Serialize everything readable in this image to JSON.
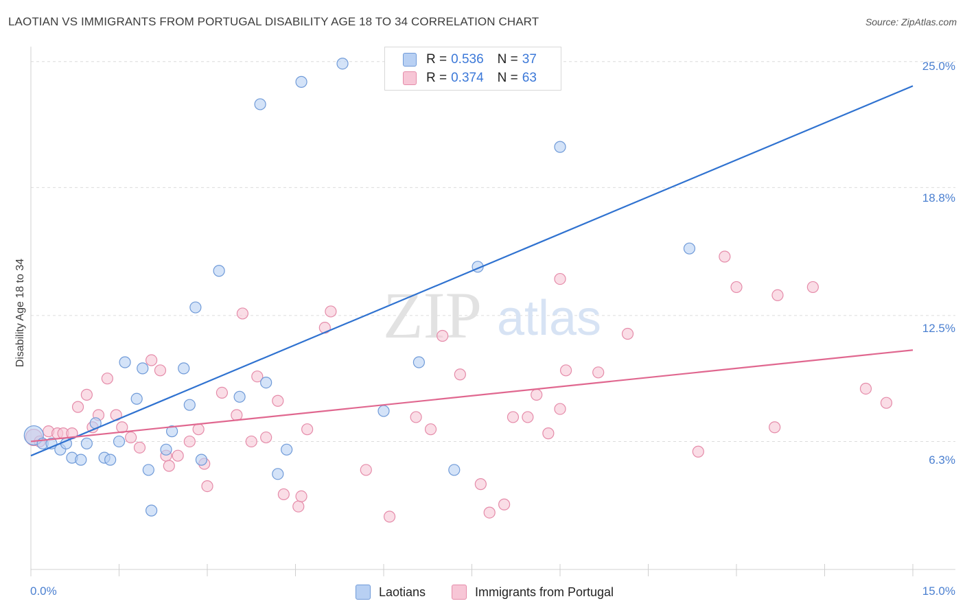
{
  "header": {
    "title": "LAOTIAN VS IMMIGRANTS FROM PORTUGAL DISABILITY AGE 18 TO 34 CORRELATION CHART",
    "source": "Source: ZipAtlas.com"
  },
  "colors": {
    "blue_fill": "#b8d0f3",
    "blue_stroke": "#6f9ad8",
    "blue_line": "#2f72d0",
    "pink_fill": "#f7c6d6",
    "pink_stroke": "#e58ba9",
    "pink_line": "#e0678f",
    "tick_text": "#4a7fd0"
  },
  "legend": {
    "series1": {
      "r_label": "R =",
      "r_value": "0.536",
      "n_label": "N =",
      "n_value": "37"
    },
    "series2": {
      "r_label": "R =",
      "r_value": "0.374",
      "n_label": "N =",
      "n_value": "63"
    }
  },
  "bottom_legend": {
    "series1": "Laotians",
    "series2": "Immigrants from Portugal"
  },
  "watermark": {
    "zip": "ZIP",
    "atlas": "atlas"
  },
  "chart_data": {
    "type": "scatter",
    "title": "LAOTIAN VS IMMIGRANTS FROM PORTUGAL DISABILITY AGE 18 TO 34 CORRELATION CHART",
    "xlabel": "",
    "ylabel": "Disability Age 18 to 34",
    "xlim": [
      0,
      15
    ],
    "ylim": [
      0,
      25.6
    ],
    "x_tick_labels": [
      "0.0%",
      "15.0%"
    ],
    "y_tick_values": [
      6.3,
      12.5,
      18.8,
      25.0
    ],
    "y_tick_labels": [
      "6.3%",
      "12.5%",
      "18.8%",
      "25.0%"
    ],
    "series": [
      {
        "name": "Laotians",
        "r": 0.536,
        "n": 37,
        "trend": {
          "x": [
            0.0,
            15.0
          ],
          "y": [
            5.6,
            23.8
          ]
        },
        "points": [
          [
            0.05,
            6.6
          ],
          [
            0.2,
            6.2
          ],
          [
            0.35,
            6.2
          ],
          [
            0.5,
            5.9
          ],
          [
            0.6,
            6.2
          ],
          [
            0.7,
            5.5
          ],
          [
            0.85,
            5.4
          ],
          [
            0.95,
            6.2
          ],
          [
            1.1,
            7.2
          ],
          [
            1.25,
            5.5
          ],
          [
            1.35,
            5.4
          ],
          [
            1.5,
            6.3
          ],
          [
            1.6,
            10.2
          ],
          [
            1.8,
            8.4
          ],
          [
            1.9,
            9.9
          ],
          [
            2.0,
            4.9
          ],
          [
            2.05,
            2.9
          ],
          [
            2.3,
            5.9
          ],
          [
            2.4,
            6.8
          ],
          [
            2.6,
            9.9
          ],
          [
            2.7,
            8.1
          ],
          [
            2.8,
            12.9
          ],
          [
            2.9,
            5.4
          ],
          [
            3.2,
            14.7
          ],
          [
            3.55,
            8.5
          ],
          [
            3.9,
            22.9
          ],
          [
            4.0,
            9.2
          ],
          [
            4.2,
            4.7
          ],
          [
            4.35,
            5.9
          ],
          [
            4.6,
            24.0
          ],
          [
            5.3,
            24.9
          ],
          [
            6.0,
            7.8
          ],
          [
            6.6,
            10.2
          ],
          [
            7.2,
            4.9
          ],
          [
            7.6,
            14.9
          ],
          [
            9.0,
            20.8
          ],
          [
            11.2,
            15.8
          ]
        ]
      },
      {
        "name": "Immigrants from Portugal",
        "r": 0.374,
        "n": 63,
        "trend": {
          "x": [
            0.0,
            15.0
          ],
          "y": [
            6.3,
            10.8
          ]
        },
        "points": [
          [
            0.05,
            6.5
          ],
          [
            0.15,
            6.3
          ],
          [
            0.3,
            6.8
          ],
          [
            0.45,
            6.7
          ],
          [
            0.55,
            6.7
          ],
          [
            0.7,
            6.7
          ],
          [
            0.8,
            8.0
          ],
          [
            0.95,
            8.6
          ],
          [
            1.05,
            7.0
          ],
          [
            1.15,
            7.6
          ],
          [
            1.3,
            9.4
          ],
          [
            1.45,
            7.6
          ],
          [
            1.55,
            7.0
          ],
          [
            1.7,
            6.5
          ],
          [
            1.85,
            6.0
          ],
          [
            2.05,
            10.3
          ],
          [
            2.2,
            9.8
          ],
          [
            2.3,
            5.6
          ],
          [
            2.35,
            5.1
          ],
          [
            2.5,
            5.6
          ],
          [
            2.7,
            6.3
          ],
          [
            2.85,
            6.9
          ],
          [
            2.95,
            5.2
          ],
          [
            3.0,
            4.1
          ],
          [
            3.25,
            8.7
          ],
          [
            3.5,
            7.6
          ],
          [
            3.6,
            12.6
          ],
          [
            3.75,
            6.3
          ],
          [
            3.85,
            9.5
          ],
          [
            4.0,
            6.5
          ],
          [
            4.2,
            8.3
          ],
          [
            4.3,
            3.7
          ],
          [
            4.55,
            3.1
          ],
          [
            4.6,
            3.6
          ],
          [
            4.7,
            6.9
          ],
          [
            5.0,
            11.9
          ],
          [
            5.1,
            12.7
          ],
          [
            5.7,
            4.9
          ],
          [
            6.1,
            2.6
          ],
          [
            6.55,
            7.5
          ],
          [
            6.8,
            6.9
          ],
          [
            7.0,
            11.5
          ],
          [
            7.3,
            9.6
          ],
          [
            7.65,
            4.2
          ],
          [
            7.8,
            2.8
          ],
          [
            8.05,
            3.2
          ],
          [
            8.2,
            7.5
          ],
          [
            8.45,
            7.5
          ],
          [
            8.6,
            8.6
          ],
          [
            8.8,
            6.7
          ],
          [
            9.0,
            7.9
          ],
          [
            9.0,
            14.3
          ],
          [
            9.1,
            9.8
          ],
          [
            9.65,
            9.7
          ],
          [
            10.15,
            11.6
          ],
          [
            11.35,
            5.8
          ],
          [
            11.8,
            15.4
          ],
          [
            12.0,
            13.9
          ],
          [
            12.65,
            7.0
          ],
          [
            12.7,
            13.5
          ],
          [
            13.3,
            13.9
          ],
          [
            14.2,
            8.9
          ],
          [
            14.55,
            8.2
          ]
        ]
      }
    ]
  }
}
